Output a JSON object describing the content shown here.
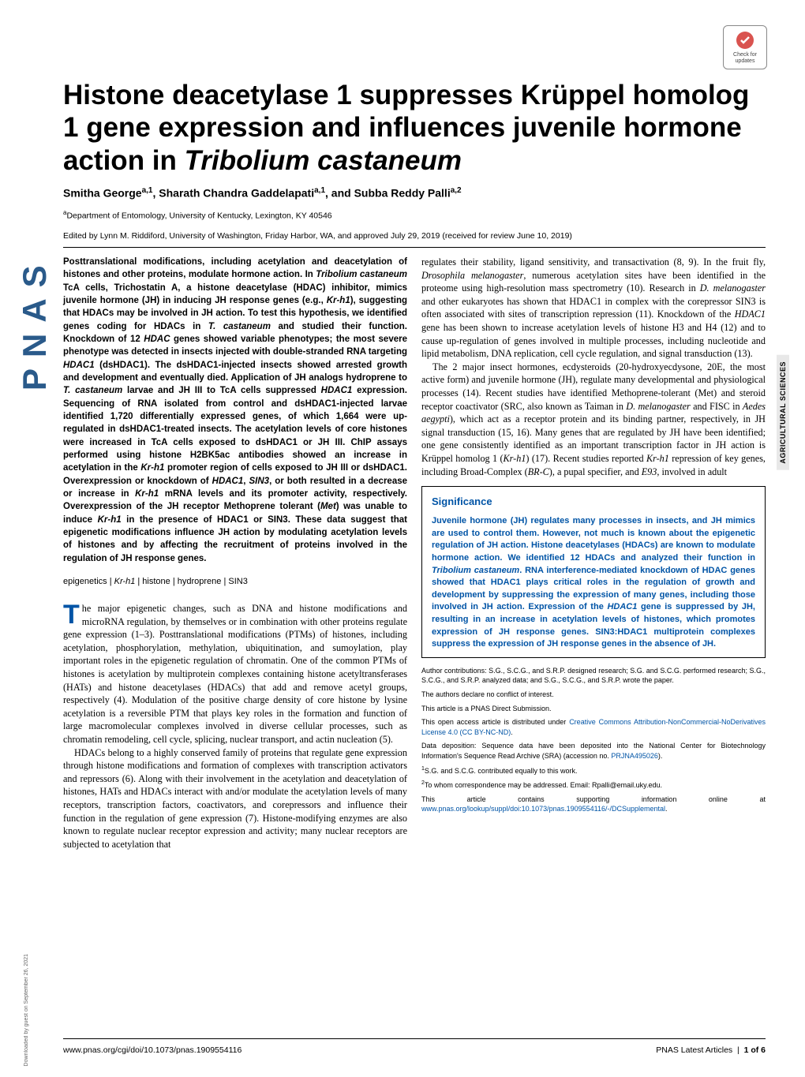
{
  "sidebar_logo": "PNAS",
  "check_updates": "Check for updates",
  "title_part1": "Histone deacetylase 1 suppresses Krüppel homolog 1 gene expression and influences juvenile hormone action in ",
  "title_part2": "Tribolium castaneum",
  "authors_html": "Smitha George<sup>a,1</sup>, Sharath Chandra Gaddelapati<sup>a,1</sup>, and Subba Reddy Palli<sup>a,2</sup>",
  "affiliation_html": "<sup>a</sup>Department of Entomology, University of Kentucky, Lexington, KY 40546",
  "edited": "Edited by Lynn M. Riddiford, University of Washington, Friday Harbor, WA, and approved July 29, 2019 (received for review June 10, 2019)",
  "abstract": "Posttranslational modifications, including acetylation and deacetylation of histones and other proteins, modulate hormone action. In <span class='ital'>Tribolium castaneum</span> TcA cells, Trichostatin A, a histone deacetylase (HDAC) inhibitor, mimics juvenile hormone (JH) in inducing JH response genes (e.g., <span class='ital'>Kr-h1</span>), suggesting that HDACs may be involved in JH action. To test this hypothesis, we identified genes coding for HDACs in <span class='ital'>T. castaneum</span> and studied their function. Knockdown of 12 <span class='ital'>HDAC</span> genes showed variable phenotypes; the most severe phenotype was detected in insects injected with double-stranded RNA targeting <span class='ital'>HDAC1</span> (dsHDAC1). The dsHDAC1-injected insects showed arrested growth and development and eventually died. Application of JH analogs hydroprene to <span class='ital'>T. castaneum</span> larvae and JH III to TcA cells suppressed <span class='ital'>HDAC1</span> expression. Sequencing of RNA isolated from control and dsHDAC1-injected larvae identified 1,720 differentially expressed genes, of which 1,664 were up-regulated in dsHDAC1-treated insects. The acetylation levels of core histones were increased in TcA cells exposed to dsHDAC1 or JH III. ChIP assays performed using histone H2BK5ac antibodies showed an increase in acetylation in the <span class='ital'>Kr-h1</span> promoter region of cells exposed to JH III or dsHDAC1. Overexpression or knockdown of <span class='ital'>HDAC1</span>, <span class='ital'>SIN3</span>, or both resulted in a decrease or increase in <span class='ital'>Kr-h1</span> mRNA levels and its promoter activity, respectively. Overexpression of the JH receptor Methoprene tolerant (<span class='ital'>Met</span>) was unable to induce <span class='ital'>Kr-h1</span> in the presence of HDAC1 or SIN3. These data suggest that epigenetic modifications influence JH action by modulating acetylation levels of histones and by affecting the recruitment of proteins involved in the regulation of JH response genes.",
  "keywords": "epigenetics | <span class='ital'>Kr-h1</span> | histone | hydroprene | SIN3",
  "body_left": "he major epigenetic changes, such as DNA and histone modifications and microRNA regulation, by themselves or in combination with other proteins regulate gene expression (1–3). Posttranslational modifications (PTMs) of histones, including acetylation, phosphorylation, methylation, ubiquitination, and sumoylation, play important roles in the epigenetic regulation of chromatin. One of the common PTMs of histones is acetylation by multiprotein complexes containing histone acetyltransferases (HATs) and histone deacetylases (HDACs) that add and remove acetyl groups, respectively (4). Modulation of the positive charge density of core histone by lysine acetylation is a reversible PTM that plays key roles in the formation and function of large macromolecular complexes involved in diverse cellular processes, such as chromatin remodeling, cell cycle, splicing, nuclear transport, and actin nucleation (5).",
  "body_left_p2": "HDACs belong to a highly conserved family of proteins that regulate gene expression through histone modifications and formation of complexes with transcription activators and repressors (6). Along with their involvement in the acetylation and deacetylation of histones, HATs and HDACs interact with and/or modulate the acetylation levels of many receptors, transcription factors, coactivators, and corepressors and influence their function in the regulation of gene expression (7). Histone-modifying enzymes are also known to regulate nuclear receptor expression and activity; many nuclear receptors are subjected to acetylation that",
  "body_right": "regulates their stability, ligand sensitivity, and transactivation (8, 9). In the fruit fly, <span class='ital'>Drosophila melanogaster</span>, numerous acetylation sites have been identified in the proteome using high-resolution mass spectrometry (10). Research in <span class='ital'>D. melanogaster</span> and other eukaryotes has shown that HDAC1 in complex with the corepressor SIN3 is often associated with sites of transcription repression (11). Knockdown of the <span class='ital'>HDAC1</span> gene has been shown to increase acetylation levels of histone H3 and H4 (12) and to cause up-regulation of genes involved in multiple processes, including nucleotide and lipid metabolism, DNA replication, cell cycle regulation, and signal transduction (13).",
  "body_right_p2": "The 2 major insect hormones, ecdysteroids (20-hydroxyecdysone, 20E, the most active form) and juvenile hormone (JH), regulate many developmental and physiological processes (14). Recent studies have identified Methoprene-tolerant (Met) and steroid receptor coactivator (SRC, also known as Taiman in <span class='ital'>D. melanogaster</span> and FISC in <span class='ital'>Aedes aegypti</span>), which act as a receptor protein and its binding partner, respectively, in JH signal transduction (15, 16). Many genes that are regulated by JH have been identified; one gene consistently identified as an important transcription factor in JH action is Krüppel homolog 1 (<span class='ital'>Kr-h1</span>) (17). Recent studies reported <span class='ital'>Kr-h1</span> repression of key genes, including Broad-Complex (<span class='ital'>BR-C</span>), a pupal specifier, and <span class='ital'>E93</span>, involved in adult",
  "significance_title": "Significance",
  "significance": "Juvenile hormone (JH) regulates many processes in insects, and JH mimics are used to control them. However, not much is known about the epigenetic regulation of JH action. Histone deacetylases (HDACs) are known to modulate hormone action. We identified 12 HDACs and analyzed their function in <span class='ital'>Tribolium castaneum</span>. RNA interference-mediated knockdown of HDAC genes showed that HDAC1 plays critical roles in the regulation of growth and development by suppressing the expression of many genes, including those involved in JH action. Expression of the <span class='ital'>HDAC1</span> gene is suppressed by JH, resulting in an increase in acetylation levels of histones, which promotes expression of JH response genes. SIN3:HDAC1 multiprotein complexes suppress the expression of JH response genes in the absence of JH.",
  "meta": {
    "contributions": "Author contributions: S.G., S.C.G., and S.R.P. designed research; S.G. and S.C.G. performed research; S.G., S.C.G., and S.R.P. analyzed data; and S.G., S.C.G., and S.R.P. wrote the paper.",
    "conflict": "The authors declare no conflict of interest.",
    "submission": "This article is a PNAS Direct Submission.",
    "license_text": "This open access article is distributed under ",
    "license_link": "Creative Commons Attribution-NonCommercial-NoDerivatives License 4.0 (CC BY-NC-ND)",
    "license_suffix": ".",
    "data_text": "Data deposition: Sequence data have been deposited into the National Center for Biotechnology Information's Sequence Read Archive (SRA) (accession no. ",
    "data_link": "PRJNA495026",
    "data_suffix": ").",
    "note1": "<sup>1</sup>S.G. and S.C.G. contributed equally to this work.",
    "note2": "<sup>2</sup>To whom correspondence may be addressed. Email: Rpalli@email.uky.edu.",
    "supp_text": "This article contains supporting information online at ",
    "supp_link": "www.pnas.org/lookup/suppl/doi:10.1073/pnas.1909554116/-/DCSupplemental",
    "supp_suffix": "."
  },
  "side_label": "AGRICULTURAL SCIENCES",
  "download_note": "Downloaded by guest on September 26, 2021",
  "footer_left": "www.pnas.org/cgi/doi/10.1073/pnas.1909554116",
  "footer_right_label": "PNAS Latest Articles",
  "footer_right_page": "1 of 6",
  "colors": {
    "pnas_blue": "#2a5a8a",
    "link_blue": "#0054a6",
    "sidebar_gray": "#e8e8e8"
  }
}
